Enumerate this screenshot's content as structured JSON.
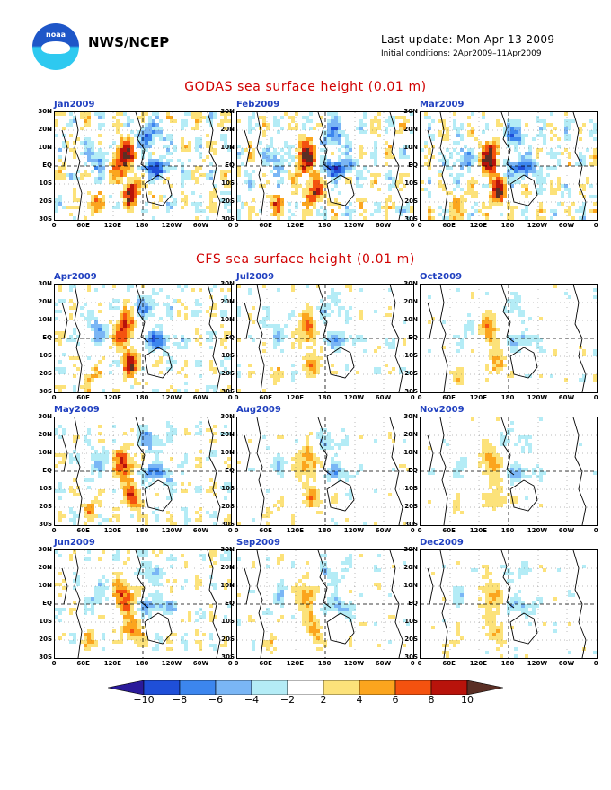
{
  "header": {
    "logo_text": "noaa",
    "org": "NWS/NCEP",
    "last_update": "Last update: Mon Apr 13 2009",
    "initial_conditions": "Initial conditions: 2Apr2009–11Apr2009"
  },
  "sections": {
    "godas_title": "GODAS sea surface height (0.01 m)",
    "cfs_title": "CFS sea surface height (0.01 m)"
  },
  "lat_labels": [
    "30N",
    "20N",
    "10N",
    "EQ",
    "10S",
    "20S",
    "30S"
  ],
  "lon_labels": [
    "0",
    "60E",
    "120E",
    "180",
    "120W",
    "60W",
    "0"
  ],
  "panels": [
    {
      "label": "Jan2009",
      "intensity": 1.0,
      "seed": 1
    },
    {
      "label": "Feb2009",
      "intensity": 1.0,
      "seed": 2
    },
    {
      "label": "Mar2009",
      "intensity": 0.95,
      "seed": 3
    },
    {
      "label": "Apr2009",
      "intensity": 0.85,
      "seed": 4
    },
    {
      "label": "Jul2009",
      "intensity": 0.6,
      "seed": 5
    },
    {
      "label": "Oct2009",
      "intensity": 0.5,
      "seed": 6
    },
    {
      "label": "May2009",
      "intensity": 0.75,
      "seed": 7
    },
    {
      "label": "Aug2009",
      "intensity": 0.55,
      "seed": 8
    },
    {
      "label": "Nov2009",
      "intensity": 0.5,
      "seed": 9
    },
    {
      "label": "Jun2009",
      "intensity": 0.7,
      "seed": 10
    },
    {
      "label": "Sep2009",
      "intensity": 0.55,
      "seed": 11
    },
    {
      "label": "Dec2009",
      "intensity": 0.5,
      "seed": 12
    }
  ],
  "colorbar": {
    "labels": [
      "−10",
      "−8",
      "−6",
      "−4",
      "−2",
      "2",
      "4",
      "6",
      "8",
      "10"
    ],
    "colors": [
      "#2a1a9a",
      "#1f4fd8",
      "#3c86ee",
      "#7ab6f5",
      "#b4ecf6",
      "#ffffff",
      "#fce27a",
      "#fba51e",
      "#f4520f",
      "#b8130b",
      "#5b2f25"
    ]
  }
}
